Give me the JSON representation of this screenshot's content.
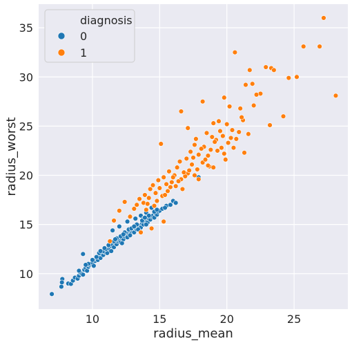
{
  "chart_data": {
    "type": "scatter",
    "title": "",
    "xlabel": "radius_mean",
    "ylabel": "radius_worst",
    "xlim": [
      6.0,
      29.0
    ],
    "ylim": [
      6.4,
      37.4
    ],
    "xticks": [
      10,
      15,
      20,
      25
    ],
    "yticks": [
      10,
      15,
      20,
      25,
      30,
      35
    ],
    "grid": true,
    "background": "#eaeaf2",
    "legend": {
      "title": "diagnosis",
      "placement": "top-left"
    },
    "series": [
      {
        "name": "0",
        "color": "#1f77b4",
        "points": [
          [
            6.98,
            7.93
          ],
          [
            7.69,
            8.68
          ],
          [
            7.76,
            9.46
          ],
          [
            7.73,
            9.12
          ],
          [
            8.2,
            9.0
          ],
          [
            8.4,
            8.96
          ],
          [
            8.55,
            9.3
          ],
          [
            8.7,
            9.6
          ],
          [
            8.9,
            9.5
          ],
          [
            9.0,
            9.8
          ],
          [
            9.1,
            10.1
          ],
          [
            9.2,
            10.0
          ],
          [
            9.3,
            9.9
          ],
          [
            9.4,
            10.4
          ],
          [
            9.5,
            10.6
          ],
          [
            9.6,
            10.3
          ],
          [
            9.7,
            10.7
          ],
          [
            9.8,
            10.9
          ],
          [
            9.3,
            12.0
          ],
          [
            9.9,
            11.0
          ],
          [
            10.0,
            11.1
          ],
          [
            10.1,
            10.8
          ],
          [
            10.2,
            11.3
          ],
          [
            10.3,
            11.5
          ],
          [
            10.4,
            11.4
          ],
          [
            10.5,
            11.7
          ],
          [
            10.6,
            11.6
          ],
          [
            10.7,
            12.0
          ],
          [
            10.8,
            11.9
          ],
          [
            10.9,
            12.2
          ],
          [
            11.0,
            12.4
          ],
          [
            11.1,
            12.1
          ],
          [
            11.2,
            12.6
          ],
          [
            11.3,
            12.5
          ],
          [
            11.4,
            12.8
          ],
          [
            11.5,
            12.9
          ],
          [
            11.6,
            12.7
          ],
          [
            11.7,
            13.1
          ],
          [
            11.8,
            13.0
          ],
          [
            11.9,
            13.3
          ],
          [
            12.0,
            13.4
          ],
          [
            12.1,
            13.2
          ],
          [
            12.2,
            13.6
          ],
          [
            12.3,
            13.5
          ],
          [
            12.4,
            13.8
          ],
          [
            12.5,
            13.9
          ],
          [
            12.6,
            13.7
          ],
          [
            12.7,
            14.1
          ],
          [
            12.8,
            14.0
          ],
          [
            12.9,
            14.3
          ],
          [
            13.0,
            14.4
          ],
          [
            13.1,
            14.2
          ],
          [
            13.2,
            14.6
          ],
          [
            13.3,
            14.5
          ],
          [
            13.4,
            14.8
          ],
          [
            13.5,
            14.9
          ],
          [
            13.6,
            14.7
          ],
          [
            13.7,
            15.1
          ],
          [
            13.8,
            15.0
          ],
          [
            13.9,
            15.3
          ],
          [
            14.0,
            15.4
          ],
          [
            14.1,
            15.2
          ],
          [
            14.2,
            15.6
          ],
          [
            14.3,
            15.5
          ],
          [
            14.4,
            15.8
          ],
          [
            14.5,
            15.9
          ],
          [
            14.6,
            15.7
          ],
          [
            14.7,
            16.1
          ],
          [
            14.8,
            16.0
          ],
          [
            14.9,
            16.3
          ],
          [
            15.0,
            16.4
          ],
          [
            15.2,
            16.6
          ],
          [
            15.5,
            16.9
          ],
          [
            15.8,
            17.0
          ],
          [
            16.0,
            17.4
          ],
          [
            16.2,
            17.2
          ],
          [
            11.5,
            14.4
          ],
          [
            12.0,
            14.8
          ],
          [
            12.6,
            15.3
          ],
          [
            13.2,
            15.6
          ],
          [
            13.6,
            15.9
          ],
          [
            14.0,
            16.2
          ],
          [
            14.4,
            16.7
          ],
          [
            17.9,
            19.8
          ],
          [
            10.8,
            12.3
          ],
          [
            11.4,
            12.3
          ],
          [
            12.2,
            13.1
          ],
          [
            12.8,
            13.9
          ],
          [
            13.4,
            14.5
          ],
          [
            14.0,
            15.0
          ],
          [
            10.5,
            12.1
          ],
          [
            11.0,
            12.5
          ],
          [
            11.6,
            13.3
          ],
          [
            12.4,
            14.2
          ],
          [
            13.0,
            14.7
          ],
          [
            13.8,
            15.6
          ],
          [
            14.6,
            16.3
          ],
          [
            10.0,
            11.4
          ],
          [
            10.9,
            12.6
          ],
          [
            11.8,
            13.6
          ],
          [
            12.7,
            14.5
          ],
          [
            13.3,
            15.0
          ],
          [
            14.2,
            15.9
          ],
          [
            9.7,
            11.0
          ],
          [
            10.3,
            11.7
          ],
          [
            11.2,
            12.9
          ],
          [
            12.1,
            13.8
          ],
          [
            12.9,
            14.6
          ],
          [
            13.7,
            15.4
          ],
          [
            14.8,
            16.5
          ],
          [
            9.0,
            10.3
          ],
          [
            9.5,
            10.9
          ],
          [
            10.6,
            12.3
          ],
          [
            11.7,
            13.5
          ],
          [
            12.3,
            14.0
          ],
          [
            13.1,
            14.8
          ],
          [
            13.9,
            15.7
          ],
          [
            15.4,
            16.7
          ]
        ]
      },
      {
        "name": "1",
        "color": "#ff7f0e",
        "points": [
          [
            27.2,
            36.0
          ],
          [
            25.7,
            33.1
          ],
          [
            26.9,
            33.1
          ],
          [
            20.6,
            32.5
          ],
          [
            28.1,
            28.1
          ],
          [
            23.3,
            30.9
          ],
          [
            22.9,
            31.0
          ],
          [
            23.5,
            30.7
          ],
          [
            21.7,
            30.7
          ],
          [
            25.2,
            30.0
          ],
          [
            24.6,
            29.9
          ],
          [
            21.9,
            29.3
          ],
          [
            21.4,
            29.2
          ],
          [
            22.5,
            28.3
          ],
          [
            22.2,
            28.2
          ],
          [
            19.8,
            27.9
          ],
          [
            18.2,
            27.5
          ],
          [
            20.2,
            27.0
          ],
          [
            21.0,
            26.8
          ],
          [
            16.6,
            26.5
          ],
          [
            24.2,
            26.0
          ],
          [
            21.2,
            25.6
          ],
          [
            19.4,
            25.5
          ],
          [
            19.0,
            25.3
          ],
          [
            20.0,
            25.2
          ],
          [
            23.2,
            25.1
          ],
          [
            17.1,
            24.8
          ],
          [
            19.5,
            24.5
          ],
          [
            20.9,
            24.4
          ],
          [
            18.5,
            24.3
          ],
          [
            19.7,
            24.0
          ],
          [
            18.9,
            23.9
          ],
          [
            20.3,
            23.8
          ],
          [
            17.7,
            23.7
          ],
          [
            19.2,
            23.6
          ],
          [
            15.1,
            23.2
          ],
          [
            17.6,
            23.1
          ],
          [
            18.3,
            22.9
          ],
          [
            19.6,
            22.8
          ],
          [
            18.8,
            22.6
          ],
          [
            17.3,
            22.4
          ],
          [
            21.3,
            22.3
          ],
          [
            17.9,
            22.1
          ],
          [
            18.6,
            22.0
          ],
          [
            17.0,
            21.7
          ],
          [
            19.9,
            21.6
          ],
          [
            16.5,
            21.4
          ],
          [
            18.2,
            21.3
          ],
          [
            17.4,
            21.1
          ],
          [
            18.7,
            20.9
          ],
          [
            16.3,
            20.8
          ],
          [
            17.8,
            20.6
          ],
          [
            15.7,
            20.4
          ],
          [
            17.1,
            20.2
          ],
          [
            16.1,
            20.0
          ],
          [
            16.9,
            19.9
          ],
          [
            15.3,
            19.8
          ],
          [
            16.6,
            19.6
          ],
          [
            14.9,
            19.5
          ],
          [
            15.9,
            19.3
          ],
          [
            15.5,
            19.1
          ],
          [
            14.5,
            19.0
          ],
          [
            16.2,
            18.9
          ],
          [
            15.0,
            18.7
          ],
          [
            14.3,
            18.6
          ],
          [
            15.6,
            18.4
          ],
          [
            14.7,
            18.2
          ],
          [
            13.9,
            18.0
          ],
          [
            15.2,
            17.9
          ],
          [
            14.2,
            17.7
          ],
          [
            13.5,
            17.6
          ],
          [
            14.8,
            17.4
          ],
          [
            13.8,
            17.2
          ],
          [
            12.4,
            17.3
          ],
          [
            13.3,
            17.0
          ],
          [
            14.6,
            16.9
          ],
          [
            13.1,
            16.6
          ],
          [
            12.0,
            16.4
          ],
          [
            14.0,
            16.5
          ],
          [
            15.3,
            15.3
          ],
          [
            11.6,
            15.4
          ],
          [
            12.8,
            15.8
          ],
          [
            14.4,
            14.6
          ],
          [
            11.3,
            13.3
          ],
          [
            13.6,
            14.2
          ],
          [
            16.8,
            20.3
          ],
          [
            17.5,
            21.8
          ],
          [
            18.1,
            22.7
          ],
          [
            19.1,
            23.4
          ],
          [
            20.4,
            24.6
          ],
          [
            21.1,
            25.9
          ],
          [
            22.0,
            27.1
          ],
          [
            16.0,
            19.8
          ],
          [
            17.2,
            20.5
          ],
          [
            18.4,
            21.6
          ],
          [
            19.3,
            22.5
          ],
          [
            20.1,
            23.3
          ],
          [
            15.8,
            18.8
          ],
          [
            16.4,
            19.4
          ],
          [
            17.6,
            20.0
          ],
          [
            18.6,
            21.0
          ],
          [
            19.8,
            22.2
          ],
          [
            20.7,
            23.7
          ],
          [
            14.1,
            17.1
          ],
          [
            15.4,
            18.0
          ],
          [
            16.7,
            18.6
          ],
          [
            17.9,
            19.6
          ],
          [
            19.0,
            20.8
          ],
          [
            20.5,
            22.8
          ],
          [
            21.6,
            24.2
          ]
        ]
      }
    ]
  }
}
